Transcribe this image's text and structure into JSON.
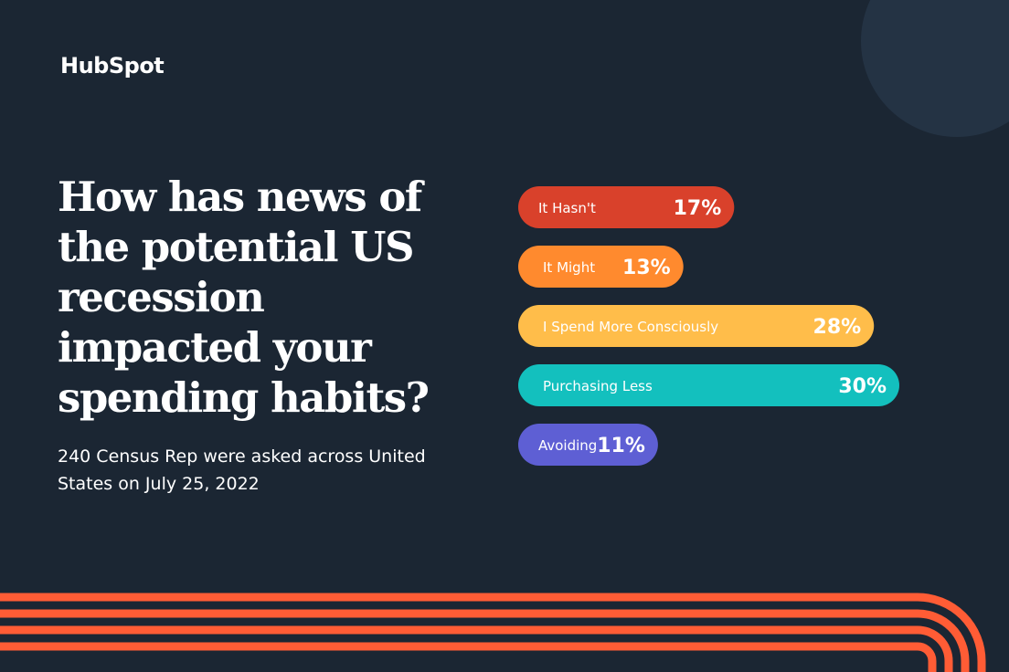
{
  "brand": {
    "logo_text": "HubSpot"
  },
  "headline": "How has news of the potential US recession impacted your spending habits?",
  "subtitle": "240 Census Rep were asked across United States on July 25, 2022",
  "colors": {
    "background": "#1b2633",
    "accent_stripes": "#ff5c35"
  },
  "chart_data": {
    "type": "bar",
    "orientation": "horizontal",
    "title": "How has news of the potential US recession impacted your spending habits?",
    "categories": [
      "It Hasn't",
      "It Might",
      "I Spend More Consciously",
      "Purchasing Less",
      "Avoiding"
    ],
    "values": [
      17,
      13,
      28,
      30,
      11
    ],
    "value_labels": [
      "17%",
      "13%",
      "28%",
      "30%",
      "11%"
    ],
    "unit": "%",
    "colors": [
      "#d9412b",
      "#ff8a2e",
      "#ffbd4a",
      "#13c0be",
      "#5e5fd4"
    ],
    "xlim": [
      0,
      30
    ],
    "grid": false,
    "legend": "none"
  }
}
